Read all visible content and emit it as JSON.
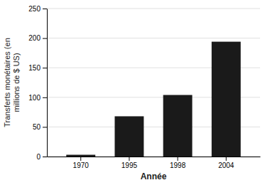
{
  "chart_data": {
    "type": "bar",
    "categories": [
      "1970",
      "1995",
      "1998",
      "2004"
    ],
    "values": [
      3,
      68,
      104,
      194
    ],
    "color": "#1a1a1a",
    "xlabel": "Année",
    "ylabel": "Transferts monétaires (en\nmillions de $ US)",
    "ylim": [
      0,
      250
    ],
    "yticks": [
      0,
      50,
      100,
      150,
      200,
      250
    ],
    "grid": true
  }
}
